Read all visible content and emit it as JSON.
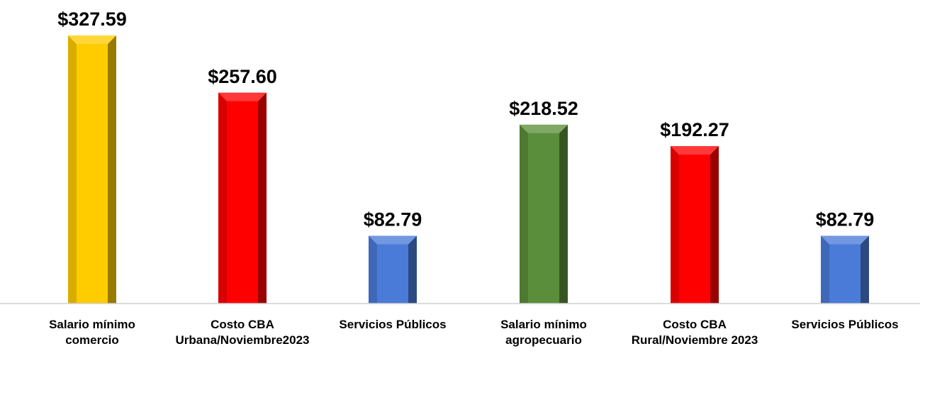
{
  "chart_data": {
    "type": "bar",
    "categories": [
      [
        "Salario mínimo",
        "comercio"
      ],
      [
        "Costo CBA",
        "Urbana/Noviembre2023"
      ],
      [
        "Servicios Públicos"
      ],
      [
        "Salario mínimo",
        "agropecuario"
      ],
      [
        "Costo CBA",
        "Rural/Noviembre 2023"
      ],
      [
        "Servicios Públicos"
      ]
    ],
    "values": [
      327.59,
      257.6,
      82.79,
      218.52,
      192.27,
      82.79
    ],
    "value_labels": [
      "$327.59",
      "$257.60",
      "$82.79",
      "$218.52",
      "$192.27",
      "$82.79"
    ],
    "bar_colors": [
      "#FFCC00",
      "#FF0000",
      "#4A7BD8",
      "#5B8E3A",
      "#FF0000",
      "#4A7BD8"
    ],
    "ylim": [
      0,
      327.59
    ],
    "grid": false,
    "legend": "none"
  }
}
